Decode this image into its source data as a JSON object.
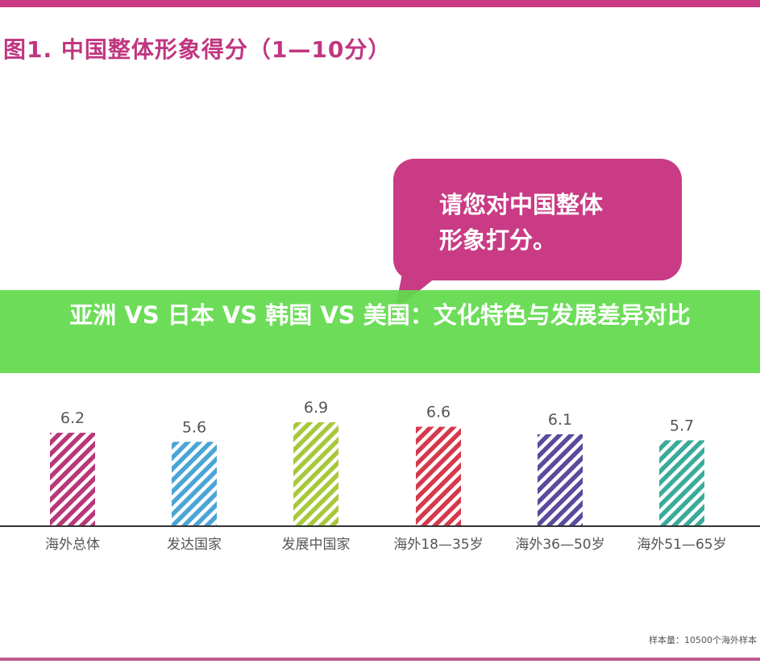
{
  "title": "图1. 中国整体形象得分（1—10分）",
  "callout": {
    "line1": "请您对中国整体",
    "line2": "形象打分。"
  },
  "banner": "亚洲 VS 日本 VS 韩国 VS 美国：文化特色与发展差异对比",
  "note": "样本量：10500个海外样本",
  "colors": {
    "accent": "#c93b84",
    "banner": "#62da4c"
  },
  "chart_data": {
    "type": "bar",
    "title": "图1. 中国整体形象得分（1—10分）",
    "categories": [
      "海外总体",
      "发达国家",
      "发展中国家",
      "海外18—35岁",
      "海外36—50岁",
      "海外51—65岁"
    ],
    "values": [
      6.2,
      5.6,
      6.9,
      6.6,
      6.1,
      5.7
    ],
    "value_labels": [
      "6.2",
      "5.6",
      "6.9",
      "6.6",
      "6.1",
      "5.7"
    ],
    "bar_colors": [
      "#b8377a",
      "#4aa5d6",
      "#a8c83c",
      "#d6394c",
      "#5b4a9c",
      "#3aab9b"
    ],
    "bar_pattern": "diagonal-stripes",
    "grid": false,
    "legend": "none"
  }
}
